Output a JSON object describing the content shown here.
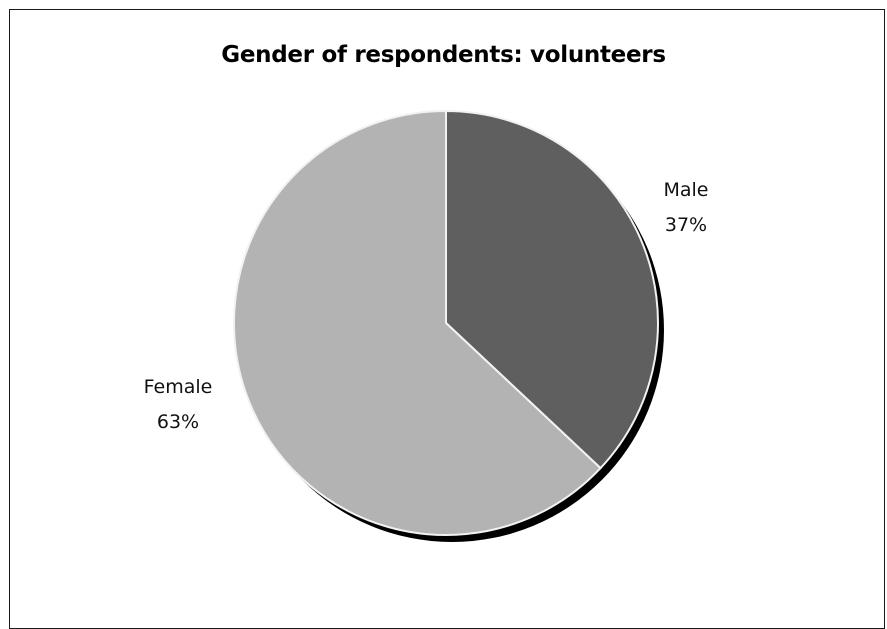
{
  "chart_data": {
    "type": "pie",
    "title": "Gender of respondents: volunteers",
    "slices": [
      {
        "label": "Male",
        "value": 37,
        "value_label": "37%",
        "color": "#5f5f5f"
      },
      {
        "label": "Female",
        "value": 63,
        "value_label": "63%",
        "color": "#b3b3b3"
      }
    ],
    "start_angle_deg": 0,
    "direction": "clockwise",
    "shadow_color": "#000000",
    "edge_color": "#f2f2f2"
  }
}
